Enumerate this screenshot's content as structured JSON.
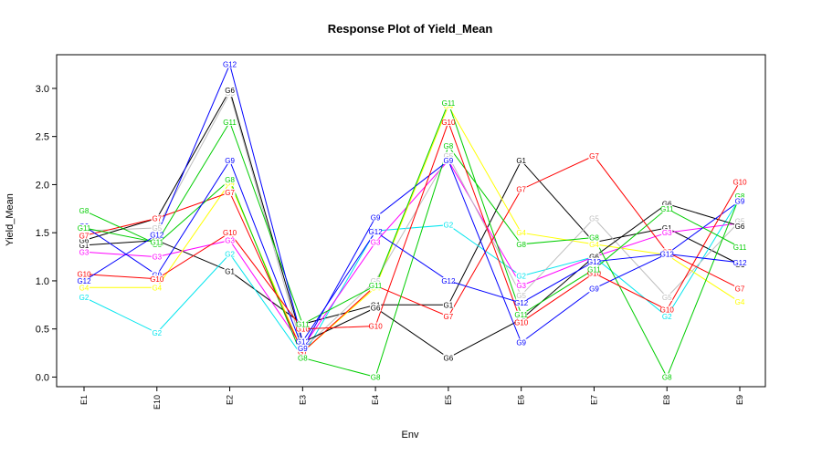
{
  "chart_data": {
    "type": "line",
    "title": "Response Plot of Yield_Mean",
    "xlabel": "Env",
    "ylabel": "Yield_Mean",
    "ylim": [
      -0.1,
      3.35
    ],
    "yticks": [
      "0.0",
      "0.5",
      "1.0",
      "1.5",
      "2.0",
      "2.5",
      "3.0"
    ],
    "categories": [
      "E1",
      "E10",
      "E2",
      "E3",
      "E4",
      "E5",
      "E6",
      "E7",
      "E8",
      "E9"
    ],
    "grid": false,
    "legend": "none",
    "series": [
      {
        "name": "G1",
        "color": "#000000",
        "values": [
          1.37,
          1.42,
          1.1,
          0.55,
          0.75,
          0.75,
          2.25,
          1.4,
          1.55,
          1.17
        ]
      },
      {
        "name": "G2",
        "color": "#00e5ee",
        "values": [
          0.83,
          0.46,
          1.28,
          0.21,
          1.52,
          1.58,
          1.05,
          1.25,
          0.63,
          1.86
        ]
      },
      {
        "name": "G3",
        "color": "#ff00ff",
        "values": [
          1.3,
          1.25,
          1.42,
          0.31,
          1.4,
          2.25,
          0.95,
          1.25,
          1.5,
          1.6
        ]
      },
      {
        "name": "G4",
        "color": "#ffff00",
        "values": [
          0.93,
          0.93,
          2.02,
          0.26,
          0.93,
          2.82,
          1.5,
          1.38,
          1.27,
          0.78
        ]
      },
      {
        "name": "G5",
        "color": "#bebebe",
        "values": [
          1.52,
          1.55,
          2.95,
          0.29,
          1.0,
          2.3,
          0.85,
          1.65,
          0.83,
          1.62
        ]
      },
      {
        "name": "G6",
        "color": "#000000",
        "values": [
          1.42,
          1.65,
          2.98,
          0.36,
          0.72,
          0.2,
          0.6,
          1.25,
          1.8,
          1.57
        ]
      },
      {
        "name": "G7",
        "color": "#ff0000",
        "values": [
          1.47,
          1.65,
          1.92,
          0.26,
          0.95,
          0.63,
          1.95,
          2.3,
          1.3,
          0.92
        ]
      },
      {
        "name": "G8",
        "color": "#00cd00",
        "values": [
          1.73,
          1.38,
          2.05,
          0.2,
          0.0,
          2.4,
          1.38,
          1.45,
          0.0,
          1.88
        ]
      },
      {
        "name": "G9",
        "color": "#0000ff",
        "values": [
          1.57,
          1.06,
          2.25,
          0.3,
          1.66,
          2.25,
          0.36,
          0.92,
          1.28,
          1.83
        ]
      },
      {
        "name": "G10",
        "color": "#ff0000",
        "values": [
          1.07,
          1.02,
          1.5,
          0.5,
          0.53,
          2.65,
          0.57,
          1.08,
          0.7,
          2.03
        ]
      },
      {
        "name": "G11",
        "color": "#00cd00",
        "values": [
          1.55,
          1.4,
          2.65,
          0.55,
          0.95,
          2.85,
          0.65,
          1.12,
          1.75,
          1.35
        ]
      },
      {
        "name": "G12",
        "color": "#0000ff",
        "values": [
          1.0,
          1.48,
          3.25,
          0.37,
          1.51,
          1.0,
          0.77,
          1.2,
          1.28,
          1.19
        ]
      }
    ]
  }
}
